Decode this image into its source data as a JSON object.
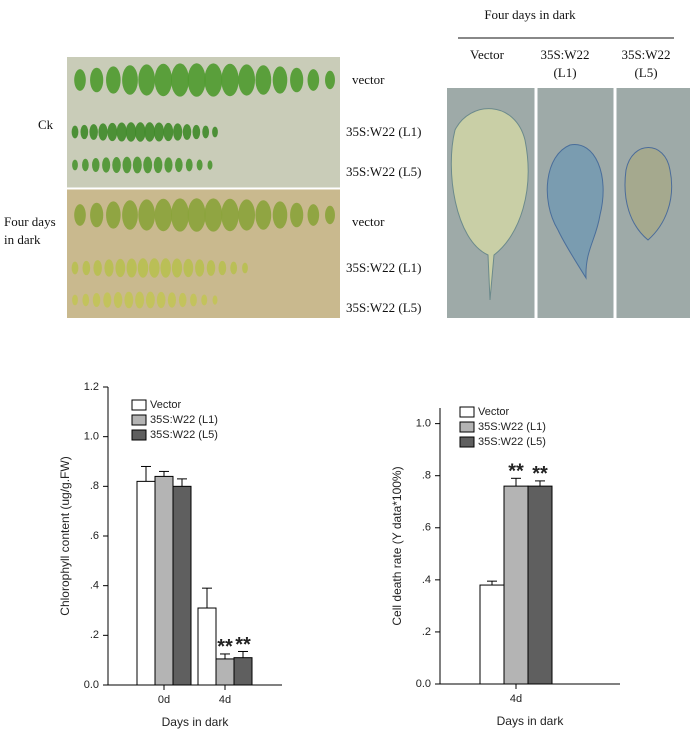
{
  "left_photo": {
    "groups": [
      "Ck",
      "Four days in dark"
    ],
    "rows": [
      "vector",
      "35S:W22 (L1)",
      "35S:W22 (L5)",
      "vector",
      "35S:W22 (L1)",
      "35S:W22 (L5)"
    ]
  },
  "right_photo": {
    "title": "Four days in dark",
    "columns": [
      "Vector",
      "35S:W22 (L1)",
      "35S:W22 (L5)"
    ]
  },
  "chart_data": [
    {
      "type": "bar",
      "y_label": "Chlorophyll content (ug/g.FW)",
      "x_label": "Days in dark",
      "categories": [
        "0d",
        "4d"
      ],
      "series": [
        {
          "name": "Vector",
          "color": "#ffffff",
          "values": [
            0.82,
            0.31
          ],
          "errors": [
            0.06,
            0.08
          ],
          "significance": [
            null,
            null
          ]
        },
        {
          "name": "35S:W22 (L1)",
          "color": "#b4b4b4",
          "values": [
            0.84,
            0.105
          ],
          "errors": [
            0.02,
            0.02
          ],
          "significance": [
            null,
            "**"
          ]
        },
        {
          "name": "35S:W22 (L5)",
          "color": "#5f5f5f",
          "values": [
            0.8,
            0.11
          ],
          "errors": [
            0.03,
            0.025
          ],
          "significance": [
            null,
            "**"
          ]
        }
      ],
      "ylim": [
        0,
        1.2
      ],
      "yticks": [
        {
          "value": 0,
          "label": "0.0"
        },
        {
          "value": 0.2,
          "label": ".2"
        },
        {
          "value": 0.4,
          "label": ".4"
        },
        {
          "value": 0.6,
          "label": ".6"
        },
        {
          "value": 0.8,
          "label": ".8"
        },
        {
          "value": 1.0,
          "label": "1.0"
        },
        {
          "value": 1.2,
          "label": "1.2"
        }
      ],
      "legend": "upper left"
    },
    {
      "type": "bar",
      "y_label": "Cell death rate (Y data*100%)",
      "x_label": "Days in dark",
      "categories": [
        "4d"
      ],
      "series": [
        {
          "name": "Vector",
          "color": "#ffffff",
          "values": [
            0.38
          ],
          "errors": [
            0.015
          ],
          "significance": [
            null
          ]
        },
        {
          "name": "35S:W22 (L1)",
          "color": "#b4b4b4",
          "values": [
            0.76
          ],
          "errors": [
            0.03
          ],
          "significance": [
            "**"
          ]
        },
        {
          "name": "35S:W22 (L5)",
          "color": "#5f5f5f",
          "values": [
            0.76
          ],
          "errors": [
            0.02
          ],
          "significance": [
            "**"
          ]
        }
      ],
      "ylim": [
        0,
        1.06
      ],
      "yticks": [
        {
          "value": 0,
          "label": "0.0"
        },
        {
          "value": 0.2,
          "label": ".2"
        },
        {
          "value": 0.4,
          "label": ".4"
        },
        {
          "value": 0.6,
          "label": ".6"
        },
        {
          "value": 0.8,
          "label": ".8"
        },
        {
          "value": 1.0,
          "label": "1.0"
        }
      ],
      "legend": "upper left"
    }
  ]
}
